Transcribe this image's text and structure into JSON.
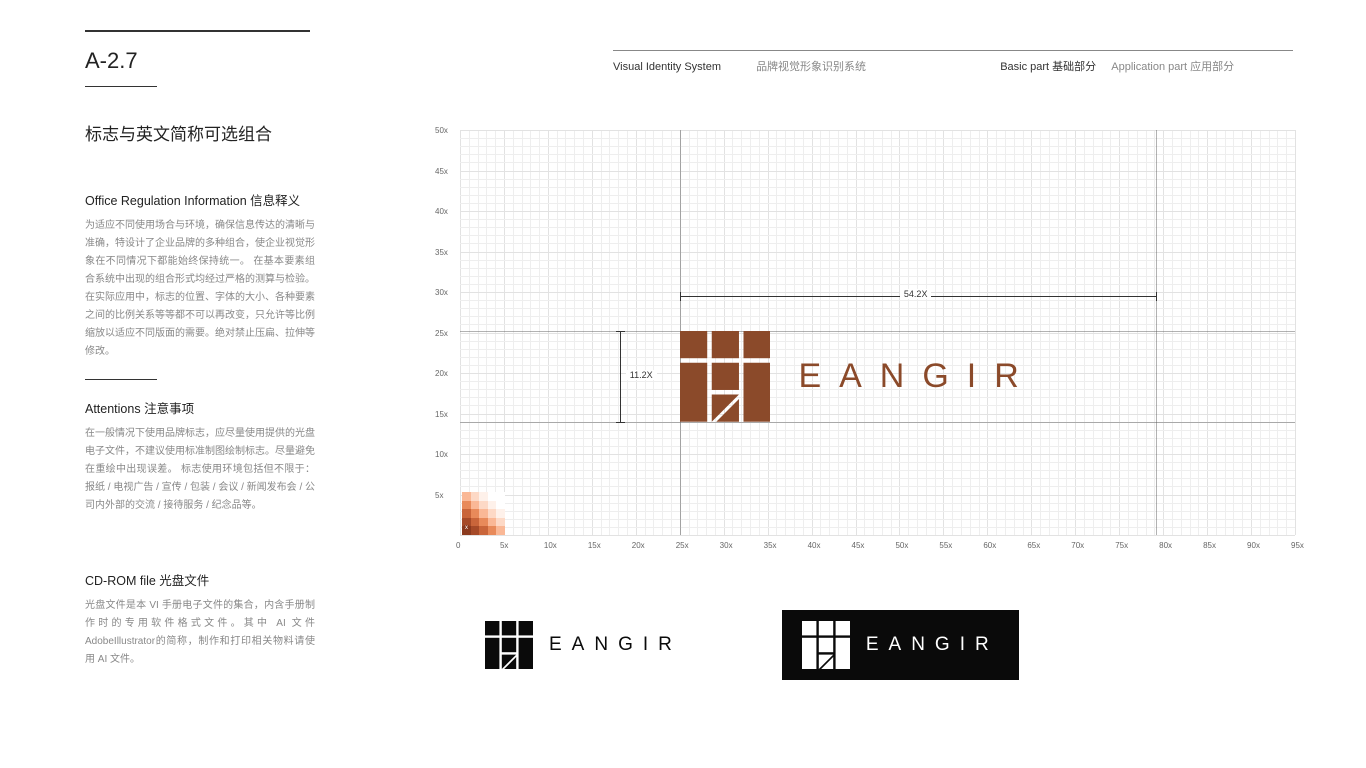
{
  "section_code": "A-2.7",
  "title_cn": "标志与英文简称可选组合",
  "header": {
    "vis_en": "Visual Identity System",
    "vis_cn": "品牌视觉形象识别系统",
    "basic": "Basic part  基础部分",
    "app": "Application part  应用部分"
  },
  "block1": {
    "title": "Office Regulation Information 信息释义",
    "text": "为适应不同使用场合与环境，确保信息传达的清晰与准确，特设计了企业品牌的多种组合，使企业视觉形象在不同情况下都能始终保持统一。\n在基本要素组合系统中出现的组合形式均经过严格的测算与检验。在实际应用中，标志的位置、字体的大小、各种要素之间的比例关系等等都不可以再改变，只允许等比例缩放以适应不同版面的需要。绝对禁止压扁、拉伸等修改。"
  },
  "block2": {
    "title": "Attentions 注意事项",
    "text": "在一般情况下使用品牌标志，应尽量使用提供的光盘电子文件，不建议使用标准制图绘制标志。尽量避免在重绘中出现误差。\n标志使用环境包括但不限于：\n报纸 / 电视广告 / 宣传 / 包装 / 会议 / 新闻发布会 / 公司内外部的交流 / 接待服务 / 纪念品等。"
  },
  "block3": {
    "title": "CD-ROM file 光盘文件",
    "text": "光盘文件是本 VI 手册电子文件的集合，内含手册制作时的专用软件格式文件。其中 AI 文件 AdobeIllustrator的简称，制作和打印相关物料请使用 AI 文件。"
  },
  "grid": {
    "x_ticks": [
      "0",
      "5x",
      "10x",
      "15x",
      "20x",
      "25x",
      "30x",
      "35x",
      "40x",
      "45x",
      "50x",
      "55x",
      "60x",
      "65x",
      "70x",
      "75x",
      "80x",
      "85x",
      "90x",
      "95x"
    ],
    "y_ticks": [
      "5x",
      "10x",
      "15x",
      "20x",
      "25x",
      "30x",
      "35x",
      "40x",
      "45x",
      "50x"
    ],
    "width_units": 95,
    "height_units": 50,
    "minor_step": 1,
    "major_step": 5,
    "grid_color": "#eeeeee",
    "major_color": "#e2e2e2"
  },
  "dimensions": {
    "width_label": "54.2X",
    "height_label": "11.2X",
    "logo_left_units": 25,
    "logo_right_units": 79.2,
    "logo_top_units": 25.2,
    "logo_bottom_units": 14
  },
  "brand": {
    "wordmark": "EANGIR",
    "primary_color": "#8b4a2a",
    "black": "#0a0a0a",
    "white": "#ffffff"
  },
  "grad_label": "x",
  "gradient_colors": [
    "#fff",
    "#fef1ea",
    "#fdd9c6",
    "#fab896",
    "#e88a5a",
    "#c9653a",
    "#a64a28",
    "#8b3a1e"
  ]
}
